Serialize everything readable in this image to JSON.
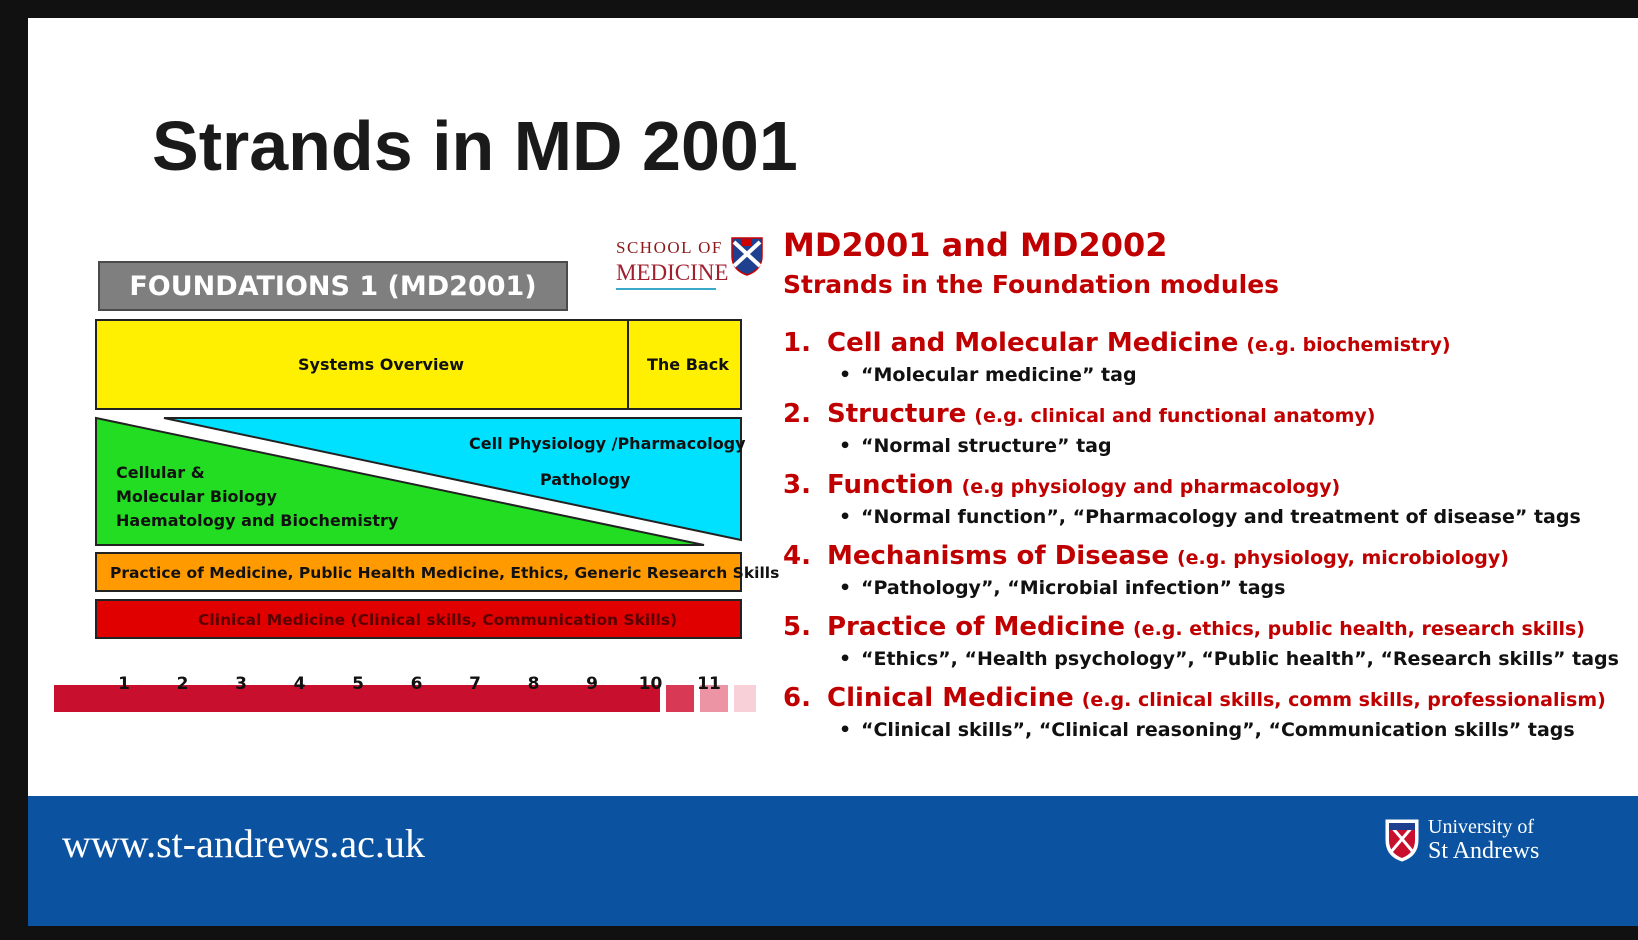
{
  "slide": {
    "title": "Strands in MD 2001"
  },
  "diagram": {
    "header": "FOUNDATIONS 1 (MD2001)",
    "school_logo": {
      "line1": "SCHOOL OF",
      "line2": "MEDICINE",
      "shield_text": "University of St Andrews"
    },
    "blocks": {
      "systems_overview": "Systems Overview",
      "the_back": "The Back",
      "cell_physiology": "Cell Physiology /Pharmacology",
      "pathology": "Pathology",
      "cellular_line1": "Cellular &",
      "cellular_line2": "Molecular Biology",
      "cellular_line3": "Haematology and Biochemistry",
      "practice": "Practice of Medicine, Public Health Medicine, Ethics, Generic Research Skills",
      "clinical": "Clinical Medicine (Clinical skills, Communication Skills)"
    },
    "weeks": [
      "1",
      "2",
      "3",
      "4",
      "5",
      "6",
      "7",
      "8",
      "9",
      "10",
      "11"
    ],
    "colors": {
      "yellow": "#ffef00",
      "green": "#22dd22",
      "cyan": "#00e0ff",
      "orange": "#ff9a00",
      "red": "#e00000",
      "timeline": "#c8102e"
    }
  },
  "right": {
    "heading1": "MD2001 and MD2002",
    "heading2": "Strands in the Foundation modules",
    "strands": [
      {
        "num": "1.",
        "name": "Cell and Molecular Medicine",
        "eg": "(e.g. biochemistry)",
        "tag": "“Molecular medicine” tag"
      },
      {
        "num": "2.",
        "name": "Structure",
        "eg": "(e.g. clinical and functional anatomy)",
        "tag": "“Normal structure” tag"
      },
      {
        "num": "3.",
        "name": "Function",
        "eg": "(e.g physiology and pharmacology)",
        "tag": "“Normal function”, “Pharmacology and treatment of disease” tags"
      },
      {
        "num": "4.",
        "name": "Mechanisms of Disease",
        "eg": "(e.g. physiology, microbiology)",
        "tag": "“Pathology”, “Microbial infection” tags"
      },
      {
        "num": "5.",
        "name": "Practice of Medicine",
        "eg": "(e.g. ethics, public health, research skills)",
        "tag": "“Ethics”, “Health psychology”, “Public health”, “Research skills” tags"
      },
      {
        "num": "6.",
        "name": "Clinical Medicine",
        "eg": "(e.g. clinical skills, comm skills, professionalism)",
        "tag": "“Clinical skills”, “Clinical reasoning”, “Communication skills” tags"
      }
    ]
  },
  "footer": {
    "url": "www.st-andrews.ac.uk",
    "uni_line1": "University of",
    "uni_line2": "St Andrews",
    "background": "#0b53a1"
  }
}
